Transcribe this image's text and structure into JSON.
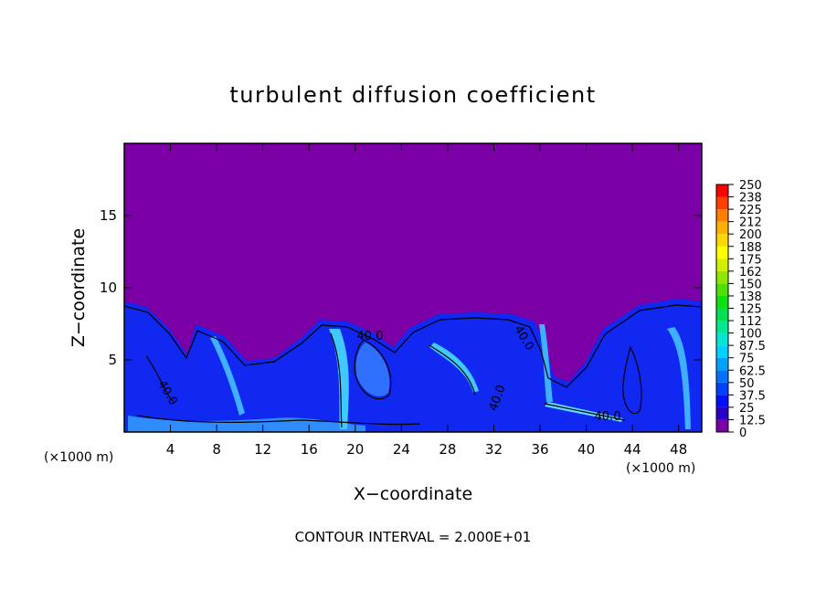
{
  "chart_data": {
    "type": "contour",
    "title": "turbulent diffusion coefficient",
    "xlabel": "X−coordinate",
    "ylabel": "Z−coordinate",
    "x_unit_left": "(×1000 m)",
    "x_unit_right": "(×1000 m)",
    "footer": "CONTOUR INTERVAL = 2.000E+01",
    "xlim": [
      0,
      50
    ],
    "ylim": [
      0,
      20
    ],
    "xticks": [
      4,
      8,
      12,
      16,
      20,
      24,
      28,
      32,
      36,
      40,
      44,
      48
    ],
    "yticks": [
      5,
      10,
      15
    ],
    "contour_labels": [
      "40.0",
      "40.0",
      "40.0",
      "40.0",
      "40.0"
    ],
    "colorbar": {
      "levels": [
        0,
        12.5,
        25,
        37.5,
        50,
        62.5,
        75,
        87.5,
        100,
        {
          "value": 112.5,
          "label": "112"
        },
        125,
        {
          "value": 137.5,
          "label": "138"
        },
        150,
        {
          "value": 162.5,
          "label": "162"
        },
        175,
        {
          "value": 187.5,
          "label": "188"
        },
        200,
        {
          "value": 212.5,
          "label": "212"
        },
        225,
        {
          "value": 237.5,
          "label": "238"
        },
        250
      ],
      "colors": [
        "#7a00a6",
        "#2a00c8",
        "#0010ff",
        "#0040ff",
        "#0070ff",
        "#00a0ff",
        "#00d0ff",
        "#00e8d0",
        "#00e890",
        "#00e050",
        "#10e010",
        "#50e000",
        "#90e800",
        "#d0f000",
        "#ffff00",
        "#ffd800",
        "#ffb000",
        "#ff8000",
        "#ff4000",
        "#ff0000",
        "#ff7070"
      ]
    }
  }
}
